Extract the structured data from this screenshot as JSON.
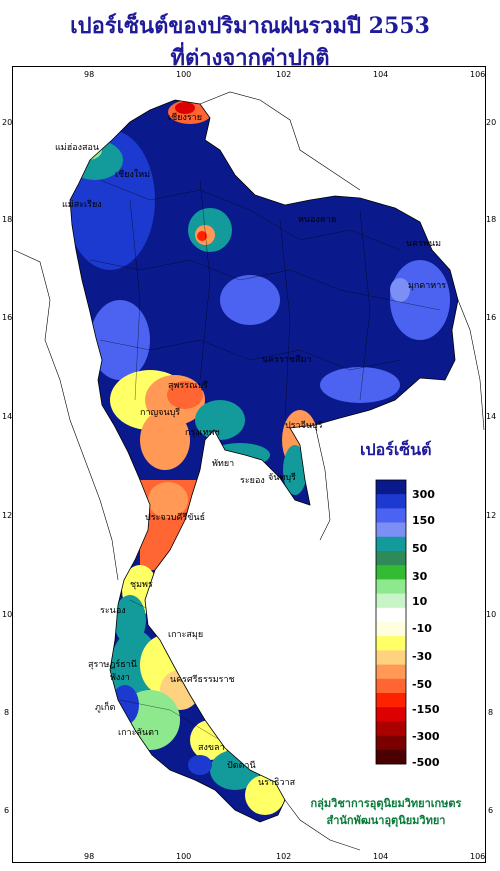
{
  "title_line1": "เปอร์เซ็นต์ของปริมาณฝนรวมปี 2553",
  "title_line2": "ที่ต่างจากค่าปกติ",
  "axes": {
    "x_ticks": [
      "98",
      "100",
      "102",
      "104",
      "106"
    ],
    "y_ticks": [
      "20",
      "18",
      "16",
      "14",
      "12",
      "10",
      "8",
      "6"
    ]
  },
  "legend": {
    "title": "เปอร์เซ็นต์",
    "labels": [
      "300",
      "150",
      "50",
      "30",
      "10",
      "-10",
      "-30",
      "-50",
      "-150",
      "-300",
      "-500"
    ],
    "colors": [
      "#0a1a8c",
      "#1c3ad0",
      "#4b63f0",
      "#7b8ff5",
      "#139a9a",
      "#2e8b57",
      "#33bb33",
      "#8ee88e",
      "#c8f5c8",
      "#ffffff",
      "#ffffe0",
      "#ffff66",
      "#ffd280",
      "#ff9955",
      "#ff6633",
      "#ff2200",
      "#dd0000",
      "#aa0000",
      "#7a0000",
      "#4a0000"
    ]
  },
  "cities": [
    {
      "name": "เชียงราย"
    },
    {
      "name": "แม่ฮ่องสอน"
    },
    {
      "name": "เชียงใหม่"
    },
    {
      "name": "แม่สะเรียง"
    },
    {
      "name": "หนองคาย"
    },
    {
      "name": "นครพนม"
    },
    {
      "name": "มุกดาหาร"
    },
    {
      "name": "นครราชสีมา"
    },
    {
      "name": "สุพรรณบุรี"
    },
    {
      "name": "กาญจนบุรี"
    },
    {
      "name": "กรุงเทพฯ"
    },
    {
      "name": "ปราจีนบุรี"
    },
    {
      "name": "พัทยา"
    },
    {
      "name": "ระยอง"
    },
    {
      "name": "จันทบุรี"
    },
    {
      "name": "ประจวบคีรีขันธ์"
    },
    {
      "name": "ชุมพร"
    },
    {
      "name": "ระนอง"
    },
    {
      "name": "เกาะสมุย"
    },
    {
      "name": "สุราษฎร์ธานี"
    },
    {
      "name": "ภูเก็ต"
    },
    {
      "name": "นครศรีธรรมราช"
    },
    {
      "name": "พังงา"
    },
    {
      "name": "เกาะลันตา"
    },
    {
      "name": "สงขลา"
    },
    {
      "name": "นราธิวาส"
    },
    {
      "name": "ปัตตานี"
    }
  ],
  "credit_line1": "กลุ่มวิชาการอุตุนิยมวิทยาเกษตร",
  "credit_line2": "สำนักพัฒนาอุตุนิยมวิทยา"
}
